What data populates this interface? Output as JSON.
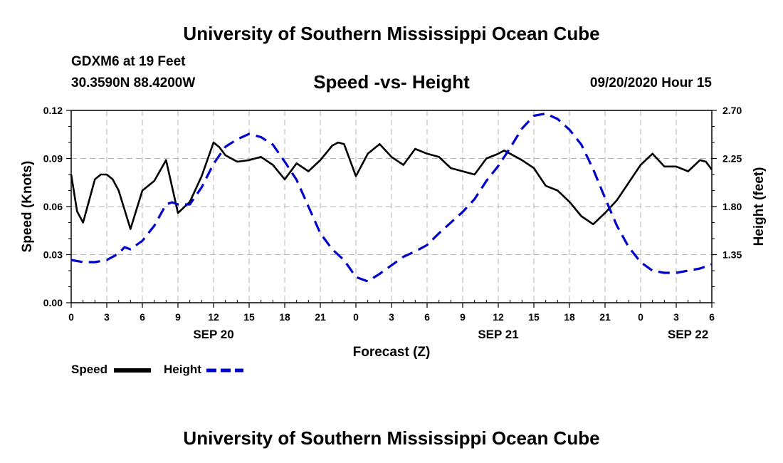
{
  "header": {
    "title": "University of Southern Mississippi Ocean Cube",
    "station": "GDXM6 at 19 Feet",
    "coords": "30.3590N 88.4200W",
    "subtitle": "Speed -vs- Height",
    "run_time": "09/20/2020 Hour 15"
  },
  "footer": {
    "title": "University of Southern Mississippi Ocean Cube"
  },
  "legend": {
    "speed_label": "Speed",
    "height_label": "Height"
  },
  "colors": {
    "speed": "#000000",
    "height": "#0000cc",
    "grid": "#b4b4b4"
  },
  "chart_data": {
    "type": "line",
    "title": "Speed -vs- Height",
    "xlabel": "Forecast (Z)",
    "ylabel": "Speed (Knots)",
    "y2label": "Height (feet)",
    "xlim": [
      0,
      54
    ],
    "ylim": [
      0,
      0.12
    ],
    "y2lim": [
      0.9,
      2.7
    ],
    "xticks": [
      0,
      3,
      6,
      9,
      12,
      15,
      18,
      21,
      24,
      27,
      30,
      33,
      36,
      39,
      42,
      45,
      48,
      51,
      54
    ],
    "xtick_labels": [
      "0",
      "3",
      "6",
      "9",
      "12",
      "15",
      "18",
      "21",
      "0",
      "3",
      "6",
      "9",
      "12",
      "15",
      "18",
      "21",
      "0",
      "3",
      "6"
    ],
    "date_labels": [
      {
        "x": 12,
        "label": "SEP 20"
      },
      {
        "x": 36,
        "label": "SEP 21"
      },
      {
        "x": 52,
        "label": "SEP 22"
      }
    ],
    "yticks": [
      0,
      0.03,
      0.06,
      0.09,
      0.12
    ],
    "ytick_labels": [
      "0.00",
      "0.03",
      "0.06",
      "0.09",
      "0.12"
    ],
    "y2ticks": [
      1.35,
      1.8,
      2.25,
      2.7
    ],
    "y2tick_labels": [
      "1.35",
      "1.80",
      "2.25",
      "2.70"
    ],
    "grid": true,
    "series": [
      {
        "name": "Speed",
        "axis": "left",
        "style": "solid",
        "x": [
          0,
          0.5,
          1,
          2,
          2.5,
          3,
          3.5,
          4,
          4.5,
          5,
          6,
          7,
          8,
          9,
          10,
          11,
          12,
          12.5,
          13,
          14,
          15,
          16,
          17,
          18,
          19,
          20,
          21,
          22,
          22.5,
          23,
          24,
          25,
          26,
          27,
          28,
          29,
          30,
          31,
          32,
          33,
          34,
          35,
          36,
          36.5,
          37,
          38,
          39,
          40,
          41,
          42,
          43,
          44,
          45,
          46,
          47,
          48,
          49,
          50,
          51,
          52,
          53,
          53.5,
          54
        ],
        "values": [
          0.08,
          0.057,
          0.05,
          0.077,
          0.08,
          0.08,
          0.077,
          0.07,
          0.058,
          0.046,
          0.07,
          0.076,
          0.089,
          0.056,
          0.063,
          0.079,
          0.1,
          0.097,
          0.092,
          0.088,
          0.089,
          0.091,
          0.086,
          0.077,
          0.087,
          0.082,
          0.089,
          0.098,
          0.1,
          0.099,
          0.079,
          0.093,
          0.099,
          0.091,
          0.086,
          0.096,
          0.093,
          0.091,
          0.084,
          0.082,
          0.08,
          0.09,
          0.093,
          0.095,
          0.093,
          0.089,
          0.084,
          0.073,
          0.07,
          0.063,
          0.054,
          0.049,
          0.056,
          0.064,
          0.075,
          0.086,
          0.093,
          0.085,
          0.085,
          0.082,
          0.089,
          0.088,
          0.083
        ]
      },
      {
        "name": "Height",
        "axis": "right",
        "style": "dashed",
        "x": [
          0,
          1,
          2,
          3,
          4,
          4.5,
          5,
          6,
          7,
          8,
          8.5,
          9,
          10,
          11,
          12,
          13,
          14,
          15,
          16,
          17,
          18,
          19,
          20,
          21,
          22,
          23,
          24,
          25,
          26,
          27,
          28,
          29,
          30,
          31,
          32,
          33,
          34,
          35,
          36,
          37,
          38,
          39,
          40,
          41,
          42,
          43,
          44,
          45,
          46,
          47,
          48,
          49,
          50,
          51,
          52,
          53,
          54
        ],
        "values": [
          1.3,
          1.28,
          1.28,
          1.3,
          1.36,
          1.42,
          1.4,
          1.48,
          1.62,
          1.82,
          1.84,
          1.82,
          1.82,
          1.98,
          2.2,
          2.36,
          2.43,
          2.48,
          2.45,
          2.38,
          2.22,
          2.05,
          1.8,
          1.55,
          1.4,
          1.3,
          1.14,
          1.1,
          1.17,
          1.25,
          1.33,
          1.38,
          1.44,
          1.55,
          1.65,
          1.75,
          1.87,
          2.04,
          2.18,
          2.35,
          2.53,
          2.65,
          2.67,
          2.62,
          2.52,
          2.38,
          2.15,
          1.88,
          1.62,
          1.42,
          1.28,
          1.2,
          1.18,
          1.18,
          1.2,
          1.22,
          1.26
        ]
      }
    ]
  }
}
